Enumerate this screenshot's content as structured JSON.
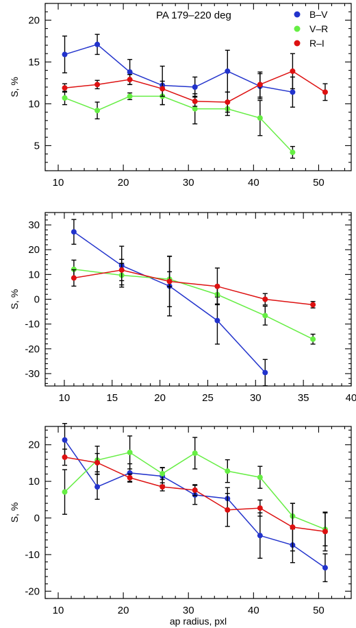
{
  "colors": {
    "B-V": "#2233cc",
    "V-R": "#66ee44",
    "R-I": "#dd1111"
  },
  "chart_data": [
    {
      "type": "line",
      "title": "PA 179–220 deg",
      "xlabel": "",
      "ylabel": "S, %",
      "xlim": [
        8,
        55
      ],
      "ylim": [
        2,
        22
      ],
      "xticks": [
        10,
        20,
        30,
        40,
        50
      ],
      "yticks": [
        5,
        10,
        15,
        20
      ],
      "legend": "top-right",
      "series": [
        {
          "name": "B–V",
          "key": "B-V",
          "x": [
            11,
            16,
            21,
            26,
            31,
            36,
            41,
            46
          ],
          "y": [
            15.9,
            17.1,
            13.8,
            12.2,
            12.0,
            13.9,
            12.1,
            11.4
          ],
          "err": [
            2.2,
            1.2,
            1.5,
            2.3,
            1.2,
            2.5,
            1.5,
            1.8
          ]
        },
        {
          "name": "V–R",
          "key": "V-R",
          "x": [
            11,
            16,
            21,
            26,
            31,
            36,
            41,
            46
          ],
          "y": [
            10.7,
            9.2,
            10.9,
            10.9,
            9.4,
            9.4,
            8.3,
            4.2
          ],
          "err": [
            0.8,
            1.0,
            0.4,
            1.0,
            1.8,
            0.8,
            2.1,
            0.7
          ]
        },
        {
          "name": "R–I",
          "key": "R-I",
          "x": [
            11,
            16,
            21,
            26,
            31,
            36,
            41,
            46,
            51
          ],
          "y": [
            11.9,
            12.3,
            12.9,
            11.8,
            10.3,
            10.2,
            12.3,
            13.9,
            11.4
          ],
          "err": [
            0.5,
            0.5,
            0.6,
            0.9,
            0.6,
            1.2,
            1.5,
            2.1,
            1.0
          ]
        }
      ]
    },
    {
      "type": "line",
      "title": "",
      "xlabel": "",
      "ylabel": "S, %",
      "xlim": [
        8,
        40
      ],
      "ylim": [
        -35,
        35
      ],
      "xticks": [
        10,
        15,
        20,
        25,
        30,
        35,
        40
      ],
      "yticks": [
        -30,
        -20,
        -10,
        0,
        10,
        20,
        30
      ],
      "series": [
        {
          "key": "B-V",
          "x": [
            11,
            16,
            21,
            26,
            31
          ],
          "y": [
            27.2,
            13.6,
            5.3,
            -8.6,
            -29.6
          ],
          "err": [
            5.0,
            7.8,
            12.0,
            9.5,
            5.3
          ]
        },
        {
          "key": "V-R",
          "x": [
            11,
            16,
            21,
            26,
            31,
            36
          ],
          "y": [
            12.1,
            9.7,
            8.1,
            1.9,
            -6.6,
            -16.1
          ],
          "err": [
            3.7,
            4.8,
            3.0,
            3.8,
            3.8,
            2.0
          ]
        },
        {
          "key": "R-I",
          "x": [
            11,
            16,
            21,
            26,
            31,
            36
          ],
          "y": [
            8.6,
            11.8,
            7.2,
            5.2,
            0.0,
            -2.2
          ],
          "err": [
            3.3,
            4.3,
            10.2,
            7.4,
            2.3,
            1.3
          ]
        }
      ]
    },
    {
      "type": "line",
      "title": "",
      "xlabel": "ap radius, pxl",
      "ylabel": "S, %",
      "xlim": [
        8,
        55
      ],
      "ylim": [
        -22,
        25
      ],
      "xticks": [
        10,
        20,
        30,
        40,
        50
      ],
      "yticks": [
        -20,
        -10,
        0,
        10,
        20
      ],
      "series": [
        {
          "key": "B-V",
          "x": [
            11,
            16,
            21,
            26,
            31,
            36,
            41,
            46,
            51
          ],
          "y": [
            21.3,
            8.5,
            12.3,
            11.4,
            6.3,
            5.3,
            -4.8,
            -7.4,
            -13.6
          ],
          "err": [
            4.5,
            3.4,
            2.5,
            2.4,
            2.6,
            3.0,
            6.2,
            4.8,
            3.8
          ]
        },
        {
          "key": "V-R",
          "x": [
            11,
            16,
            21,
            26,
            31,
            36,
            41,
            46,
            51
          ],
          "y": [
            7.1,
            15.8,
            17.9,
            12.1,
            17.7,
            12.8,
            11.1,
            0.5,
            -3.1
          ],
          "err": [
            6.1,
            3.8,
            4.5,
            1.6,
            4.3,
            3.1,
            3.0,
            3.5,
            4.5
          ]
        },
        {
          "key": "R-I",
          "x": [
            11,
            16,
            21,
            26,
            31,
            36,
            41,
            46,
            51
          ],
          "y": [
            16.6,
            15.1,
            11.0,
            8.5,
            7.6,
            2.2,
            2.7,
            -2.5,
            -3.7
          ],
          "err": [
            2.2,
            2.5,
            1.0,
            1.1,
            1.5,
            4.5,
            2.2,
            6.5,
            5.3
          ]
        }
      ]
    }
  ]
}
